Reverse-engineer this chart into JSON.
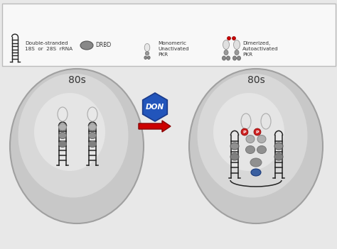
{
  "bg_color": "#e8e8e8",
  "legend_bg": "#ffffff",
  "legend_border": "#cccccc",
  "rna_color": "#222222",
  "drbd_color": "#888888",
  "pkr_body_gray": "#999999",
  "pkr_head_white": "#eeeeee",
  "pkr_active_red": "#cc0000",
  "don_color": "#2255bb",
  "don_text": "DON",
  "arrow_color": "#cc0000",
  "label_80s": "80s",
  "phospho_label": "P",
  "phospho_color": "#cc2222",
  "blue_oval_color": "#3a5fa0",
  "cell_fill": "#cccccc",
  "cell_edge": "#aaaaaa",
  "cell_inner": "#e0e0e0",
  "text_ds_rna": "Double-stranded\n18S  or  28S  rRNA",
  "text_drbd": "DRBD",
  "text_mono": "Monomeric\nUnactivated\nPKR",
  "text_dimer": "Dimerized,\nAutoactivated\nPKR",
  "font_color": "#333333"
}
